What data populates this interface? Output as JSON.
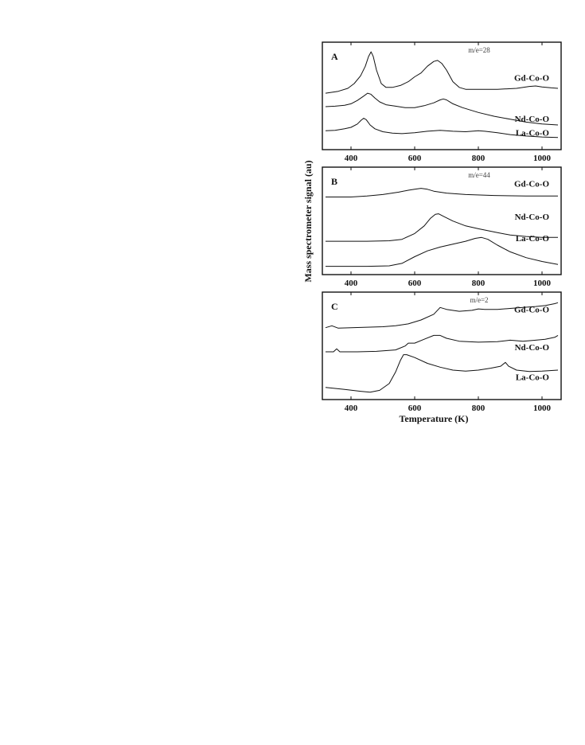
{
  "chart_data": {
    "type": "line",
    "xlabel": "Temperature (K)",
    "ylabel": "Mass spectrometer signal (au)",
    "xlim": [
      310,
      1060
    ],
    "x_ticks": [
      400,
      600,
      800,
      1000
    ],
    "x_tick_labels": [
      "400",
      "600",
      "800",
      "1000"
    ],
    "panels": [
      {
        "letter": "A",
        "note": "m/e=28",
        "series": [
          {
            "name": "Gd-Co-O",
            "points": [
              [
                320,
                0.52
              ],
              [
                360,
                0.54
              ],
              [
                390,
                0.57
              ],
              [
                410,
                0.62
              ],
              [
                430,
                0.7
              ],
              [
                445,
                0.8
              ],
              [
                455,
                0.9
              ],
              [
                463,
                0.95
              ],
              [
                470,
                0.9
              ],
              [
                480,
                0.76
              ],
              [
                495,
                0.62
              ],
              [
                510,
                0.58
              ],
              [
                530,
                0.58
              ],
              [
                555,
                0.6
              ],
              [
                580,
                0.64
              ],
              [
                600,
                0.69
              ],
              [
                620,
                0.73
              ],
              [
                640,
                0.8
              ],
              [
                660,
                0.85
              ],
              [
                672,
                0.86
              ],
              [
                685,
                0.83
              ],
              [
                700,
                0.76
              ],
              [
                720,
                0.64
              ],
              [
                740,
                0.58
              ],
              [
                760,
                0.56
              ],
              [
                800,
                0.56
              ],
              [
                860,
                0.56
              ],
              [
                920,
                0.57
              ],
              [
                960,
                0.59
              ],
              [
                980,
                0.595
              ],
              [
                1000,
                0.585
              ],
              [
                1030,
                0.575
              ],
              [
                1050,
                0.57
              ]
            ]
          },
          {
            "name": "Nd-Co-O",
            "points": [
              [
                320,
                0.38
              ],
              [
                350,
                0.385
              ],
              [
                380,
                0.395
              ],
              [
                400,
                0.41
              ],
              [
                420,
                0.445
              ],
              [
                440,
                0.49
              ],
              [
                452,
                0.52
              ],
              [
                462,
                0.51
              ],
              [
                475,
                0.47
              ],
              [
                490,
                0.43
              ],
              [
                510,
                0.4
              ],
              [
                540,
                0.385
              ],
              [
                570,
                0.37
              ],
              [
                600,
                0.37
              ],
              [
                630,
                0.39
              ],
              [
                660,
                0.42
              ],
              [
                680,
                0.45
              ],
              [
                690,
                0.46
              ],
              [
                700,
                0.45
              ],
              [
                720,
                0.41
              ],
              [
                750,
                0.37
              ],
              [
                800,
                0.32
              ],
              [
                850,
                0.28
              ],
              [
                900,
                0.25
              ],
              [
                950,
                0.22
              ],
              [
                1000,
                0.2
              ],
              [
                1050,
                0.19
              ]
            ]
          },
          {
            "name": "La-Co-O",
            "points": [
              [
                320,
                0.13
              ],
              [
                350,
                0.135
              ],
              [
                380,
                0.15
              ],
              [
                400,
                0.165
              ],
              [
                420,
                0.2
              ],
              [
                432,
                0.24
              ],
              [
                440,
                0.26
              ],
              [
                448,
                0.245
              ],
              [
                460,
                0.19
              ],
              [
                475,
                0.15
              ],
              [
                500,
                0.12
              ],
              [
                530,
                0.105
              ],
              [
                560,
                0.1
              ],
              [
                600,
                0.11
              ],
              [
                640,
                0.125
              ],
              [
                680,
                0.135
              ],
              [
                720,
                0.125
              ],
              [
                760,
                0.12
              ],
              [
                800,
                0.13
              ],
              [
                820,
                0.125
              ],
              [
                860,
                0.11
              ],
              [
                900,
                0.09
              ],
              [
                950,
                0.075
              ],
              [
                1000,
                0.065
              ],
              [
                1050,
                0.06
              ]
            ]
          }
        ]
      },
      {
        "letter": "B",
        "note": "m/e=44",
        "series": [
          {
            "name": "Gd-Co-O",
            "points": [
              [
                320,
                0.74
              ],
              [
                400,
                0.74
              ],
              [
                450,
                0.75
              ],
              [
                500,
                0.765
              ],
              [
                550,
                0.79
              ],
              [
                580,
                0.81
              ],
              [
                600,
                0.82
              ],
              [
                620,
                0.83
              ],
              [
                640,
                0.82
              ],
              [
                660,
                0.8
              ],
              [
                700,
                0.78
              ],
              [
                760,
                0.765
              ],
              [
                850,
                0.755
              ],
              [
                950,
                0.75
              ],
              [
                1050,
                0.75
              ]
            ]
          },
          {
            "name": "Nd-Co-O",
            "points": [
              [
                320,
                0.28
              ],
              [
                450,
                0.28
              ],
              [
                520,
                0.285
              ],
              [
                560,
                0.3
              ],
              [
                600,
                0.36
              ],
              [
                630,
                0.44
              ],
              [
                650,
                0.52
              ],
              [
                665,
                0.56
              ],
              [
                675,
                0.565
              ],
              [
                690,
                0.54
              ],
              [
                720,
                0.49
              ],
              [
                760,
                0.44
              ],
              [
                800,
                0.41
              ],
              [
                860,
                0.37
              ],
              [
                900,
                0.345
              ],
              [
                950,
                0.33
              ],
              [
                1000,
                0.32
              ],
              [
                1050,
                0.32
              ]
            ]
          },
          {
            "name": "La-Co-O",
            "points": [
              [
                320,
                0.02
              ],
              [
                450,
                0.02
              ],
              [
                520,
                0.025
              ],
              [
                560,
                0.05
              ],
              [
                600,
                0.12
              ],
              [
                640,
                0.18
              ],
              [
                680,
                0.22
              ],
              [
                720,
                0.25
              ],
              [
                760,
                0.28
              ],
              [
                790,
                0.31
              ],
              [
                810,
                0.32
              ],
              [
                830,
                0.3
              ],
              [
                860,
                0.24
              ],
              [
                900,
                0.17
              ],
              [
                950,
                0.11
              ],
              [
                1000,
                0.07
              ],
              [
                1050,
                0.04
              ]
            ]
          }
        ]
      },
      {
        "letter": "C",
        "note": "m/e=2",
        "series": [
          {
            "name": "Gd-Co-O",
            "points": [
              [
                320,
                0.68
              ],
              [
                340,
                0.7
              ],
              [
                360,
                0.675
              ],
              [
                400,
                0.68
              ],
              [
                450,
                0.685
              ],
              [
                500,
                0.69
              ],
              [
                540,
                0.7
              ],
              [
                580,
                0.72
              ],
              [
                620,
                0.76
              ],
              [
                660,
                0.82
              ],
              [
                680,
                0.89
              ],
              [
                700,
                0.87
              ],
              [
                740,
                0.85
              ],
              [
                780,
                0.86
              ],
              [
                800,
                0.875
              ],
              [
                820,
                0.87
              ],
              [
                860,
                0.87
              ],
              [
                900,
                0.88
              ],
              [
                940,
                0.89
              ],
              [
                980,
                0.9
              ],
              [
                1010,
                0.91
              ],
              [
                1040,
                0.93
              ],
              [
                1050,
                0.94
              ]
            ]
          },
          {
            "name": "Nd-Co-O",
            "points": [
              [
                320,
                0.43
              ],
              [
                345,
                0.43
              ],
              [
                355,
                0.46
              ],
              [
                365,
                0.43
              ],
              [
                420,
                0.43
              ],
              [
                480,
                0.435
              ],
              [
                540,
                0.45
              ],
              [
                570,
                0.49
              ],
              [
                580,
                0.52
              ],
              [
                600,
                0.52
              ],
              [
                630,
                0.56
              ],
              [
                660,
                0.6
              ],
              [
                680,
                0.6
              ],
              [
                700,
                0.57
              ],
              [
                740,
                0.54
              ],
              [
                800,
                0.53
              ],
              [
                860,
                0.535
              ],
              [
                900,
                0.55
              ],
              [
                940,
                0.54
              ],
              [
                980,
                0.55
              ],
              [
                1010,
                0.56
              ],
              [
                1040,
                0.58
              ],
              [
                1050,
                0.6
              ]
            ]
          },
          {
            "name": "La-Co-O",
            "points": [
              [
                320,
                0.06
              ],
              [
                380,
                0.04
              ],
              [
                430,
                0.02
              ],
              [
                460,
                0.01
              ],
              [
                490,
                0.03
              ],
              [
                520,
                0.1
              ],
              [
                540,
                0.22
              ],
              [
                555,
                0.34
              ],
              [
                565,
                0.4
              ],
              [
                575,
                0.4
              ],
              [
                600,
                0.37
              ],
              [
                640,
                0.31
              ],
              [
                680,
                0.27
              ],
              [
                720,
                0.24
              ],
              [
                760,
                0.23
              ],
              [
                800,
                0.24
              ],
              [
                840,
                0.26
              ],
              [
                870,
                0.28
              ],
              [
                885,
                0.32
              ],
              [
                895,
                0.28
              ],
              [
                920,
                0.24
              ],
              [
                960,
                0.225
              ],
              [
                1000,
                0.23
              ],
              [
                1050,
                0.24
              ]
            ]
          }
        ]
      }
    ]
  }
}
